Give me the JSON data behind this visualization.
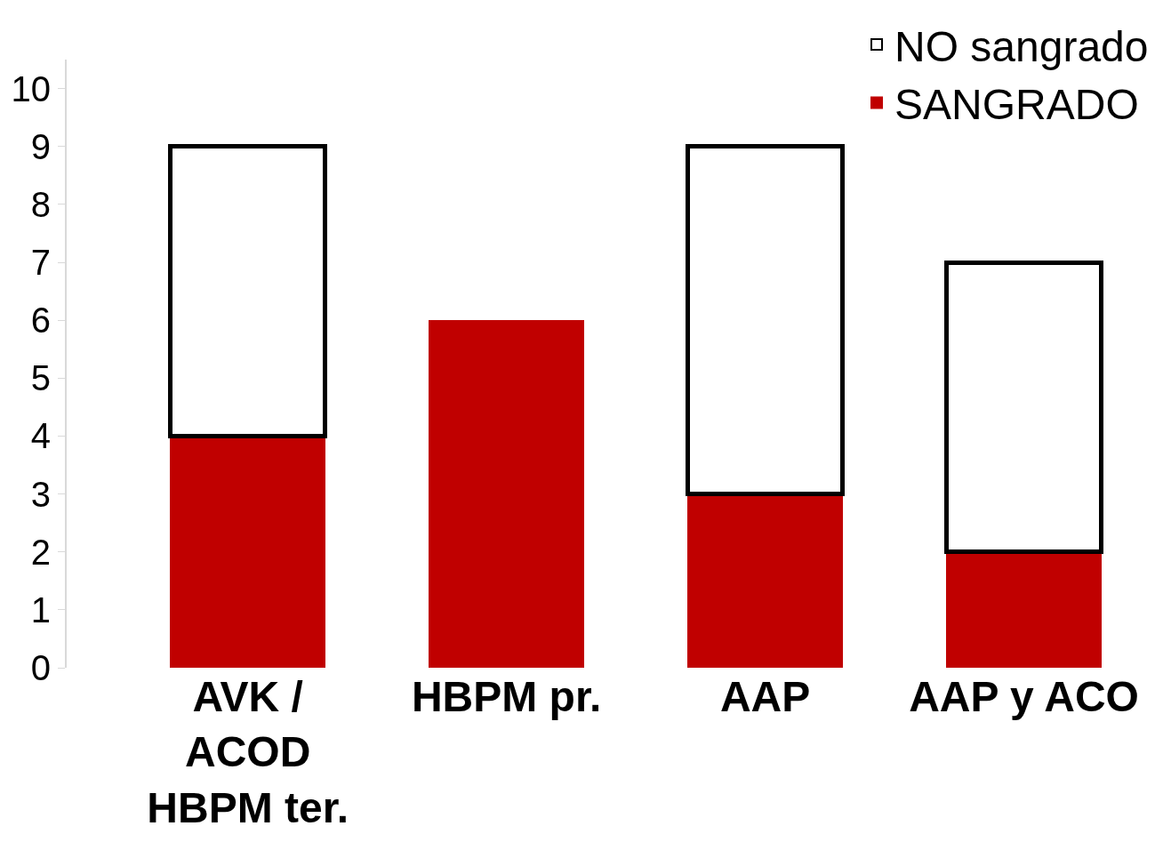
{
  "chart_data": {
    "type": "bar",
    "stacked": true,
    "categories": [
      "AVK /\nACOD\nHBPM ter.",
      "HBPM pr.",
      "AAP",
      "AAP y ACO"
    ],
    "series": [
      {
        "name": "SANGRADO",
        "color": "#c00000",
        "values": [
          4,
          6,
          3,
          2
        ]
      },
      {
        "name": "NO sangrado",
        "color": "#ffffff",
        "values": [
          5,
          0,
          6,
          5
        ]
      }
    ],
    "ylim": [
      0,
      10.5
    ],
    "yticks": [
      0,
      1,
      2,
      3,
      4,
      5,
      6,
      7,
      8,
      9,
      10
    ],
    "legend": "top right"
  }
}
